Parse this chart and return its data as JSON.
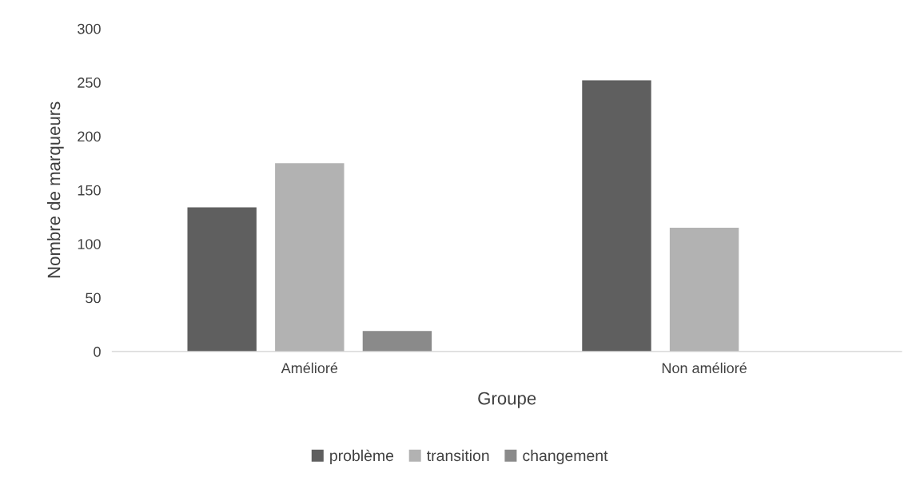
{
  "chart_data": {
    "type": "bar",
    "xlabel": "Groupe",
    "ylabel": "Nombre de marqueurs",
    "categories": [
      "Amélioré",
      "Non amélioré"
    ],
    "series": [
      {
        "name": "problème",
        "color": "#5f5f5f",
        "values": [
          134,
          252
        ]
      },
      {
        "name": "transition",
        "color": "#b2b2b2",
        "values": [
          175,
          115
        ]
      },
      {
        "name": "changement",
        "color": "#8a8a8a",
        "values": [
          19,
          0
        ]
      }
    ],
    "ylim": [
      0,
      300
    ],
    "yticks": [
      0,
      50,
      100,
      150,
      200,
      250,
      300
    ],
    "grid": false,
    "legend": "bottom"
  }
}
